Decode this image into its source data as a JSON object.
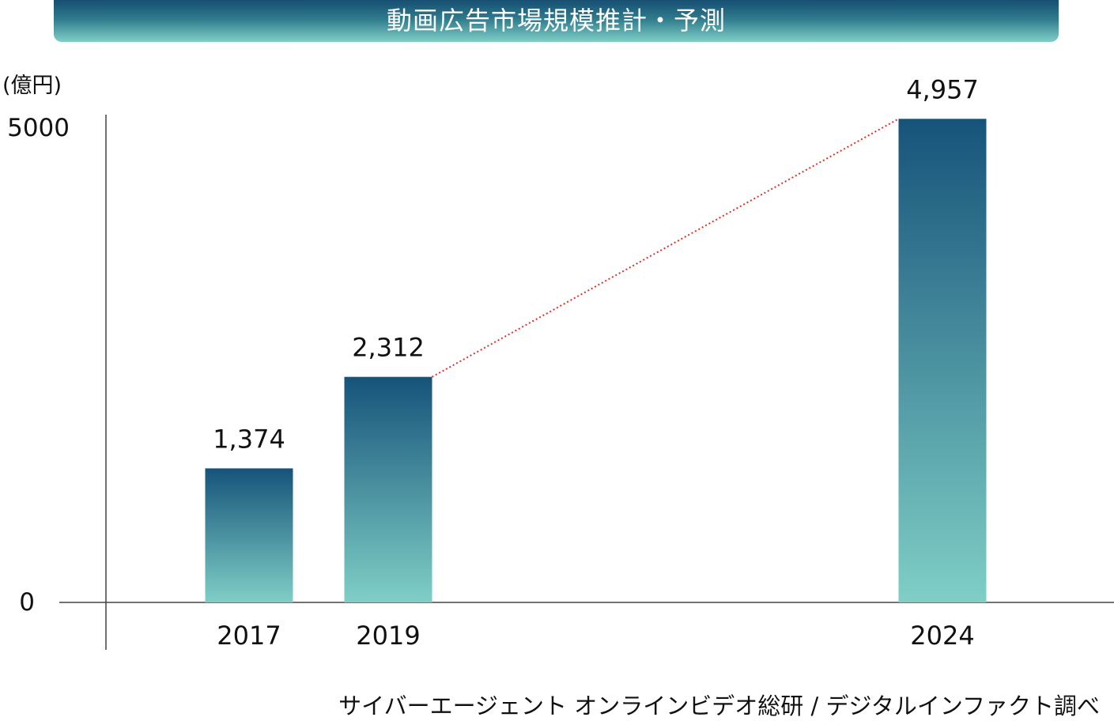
{
  "chart_data": {
    "type": "bar",
    "title": "動画広告市場規模推計・予測",
    "unit_label": "(億円)",
    "categories": [
      "2017",
      "2019",
      "2024"
    ],
    "values": [
      1374,
      2312,
      4957
    ],
    "value_labels": [
      "1,374",
      "2,312",
      "4,957"
    ],
    "ylim": [
      0,
      5000
    ],
    "yticks": [
      "0",
      "5000"
    ],
    "trend_line": {
      "from": "2019",
      "to": "2024",
      "style": "dotted",
      "color": "#d9342b"
    },
    "bar_gradient": {
      "top": "#16537a",
      "bottom": "#7fcfc6"
    },
    "grid": false,
    "legend": "none"
  },
  "source": "サイバーエージェント オンラインビデオ総研 / デジタルインファクト調べ"
}
